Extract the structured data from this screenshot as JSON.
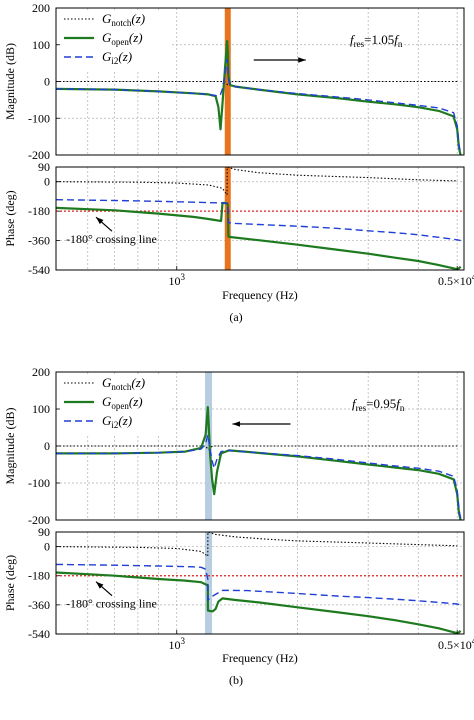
{
  "figure": {
    "colors": {
      "notch": "#000000",
      "open": "#1e7a1e",
      "i2": "#1f3fd6",
      "crossing": "#e0201c",
      "marker_a": "#e8731f",
      "marker_b": "#b8cde0",
      "grid": "#b0b0b0"
    }
  },
  "chart_data": [
    {
      "panel_label": "(a)",
      "type": "line",
      "xscale": "log",
      "xlabel": "Frequency  (Hz)",
      "xlim": [
        500,
        5200
      ],
      "xticks": [
        {
          "value": 1000,
          "base": "10",
          "exp": "3"
        },
        {
          "value": 5000,
          "pre": "0.5×10",
          "exp": "4"
        }
      ],
      "resonance_marker": {
        "x": 1340,
        "style": "orange-band"
      },
      "annotation": {
        "prefix": "f",
        "sub": "res",
        "text": "=1.05",
        "suffix": "f",
        "suffix_sub": "n",
        "arrow": "right"
      },
      "legend": [
        {
          "series": "notch",
          "base": "G",
          "sub": "notch",
          "arg": "(z)"
        },
        {
          "series": "open",
          "base": "G",
          "sub": "open",
          "arg": "(z)"
        },
        {
          "series": "i2",
          "base": "G",
          "sub": "i2",
          "arg": "(z)"
        }
      ],
      "magnitude": {
        "ylabel": "Magnitude (dB)",
        "ylim": [
          -200,
          200
        ],
        "yticks": [
          200,
          100,
          0,
          -100,
          -200
        ],
        "series": [
          {
            "key": "notch",
            "x": [
              500,
              800,
              1000,
              1200,
              1300,
              1320,
              1330,
              1340,
              1350,
              1360,
              1380,
              1500,
              2000,
              3000,
              4000,
              5000
            ],
            "y": [
              0,
              0,
              0,
              0,
              0,
              -2,
              -5,
              -10,
              -5,
              -2,
              0,
              0,
              0,
              0,
              0,
              0
            ]
          },
          {
            "key": "open",
            "x": [
              500,
              700,
              900,
              1100,
              1200,
              1250,
              1270,
              1285,
              1300,
              1320,
              1335,
              1340,
              1345,
              1360,
              1400,
              1600,
              2000,
              2500,
              3000,
              3500,
              4000,
              4500,
              4900,
              5000,
              5050,
              5100
            ],
            "y": [
              -20,
              -22,
              -27,
              -32,
              -35,
              -40,
              -70,
              -130,
              -60,
              40,
              110,
              80,
              15,
              -10,
              -14,
              -22,
              -35,
              -45,
              -55,
              -62,
              -70,
              -80,
              -95,
              -130,
              -180,
              -200
            ]
          },
          {
            "key": "i2",
            "x": [
              500,
              700,
              900,
              1100,
              1200,
              1250,
              1270,
              1285,
              1300,
              1320,
              1335,
              1340,
              1345,
              1360,
              1400,
              1600,
              2000,
              2500,
              3000,
              3500,
              4000,
              4500,
              4900,
              5000,
              5050,
              5100
            ],
            "y": [
              -20,
              -22,
              -27,
              -32,
              -35,
              -38,
              -40,
              -35,
              -20,
              20,
              60,
              40,
              5,
              -10,
              -14,
              -22,
              -33,
              -42,
              -50,
              -58,
              -65,
              -72,
              -85,
              -120,
              -170,
              -195
            ]
          }
        ]
      },
      "phase": {
        "ylabel": "Phase (deg)",
        "ylim": [
          -540,
          90
        ],
        "yticks": [
          90,
          0,
          -180,
          -360,
          -540
        ],
        "crossing_line": {
          "y": -180,
          "label": "-180° crossing line"
        },
        "series": [
          {
            "key": "notch",
            "x": [
              500,
              800,
              1000,
              1200,
              1300,
              1335,
              1336,
              1400,
              1600,
              2000,
              3000,
              4000,
              5000
            ],
            "y": [
              0,
              -3,
              -8,
              -20,
              -40,
              -80,
              90,
              75,
              55,
              40,
              25,
              12,
              5
            ]
          },
          {
            "key": "open",
            "x": [
              500,
              700,
              900,
              1100,
              1200,
              1290,
              1300,
              1320,
              1335,
              1340,
              1345,
              1360,
              1400,
              1600,
              2000,
              2500,
              3000,
              3500,
              4000,
              4500,
              5000,
              5050,
              5100
            ],
            "y": [
              -160,
              -175,
              -195,
              -215,
              -228,
              -240,
              -130,
              -130,
              -135,
              -140,
              -335,
              -338,
              -342,
              -358,
              -385,
              -415,
              -440,
              -465,
              -485,
              -510,
              -535,
              -530,
              -520
            ]
          },
          {
            "key": "i2",
            "x": [
              500,
              700,
              900,
              1100,
              1200,
              1300,
              1330,
              1340,
              1345,
              1400,
              1600,
              2000,
              2500,
              3000,
              3500,
              4000,
              4500,
              5000,
              5100
            ],
            "y": [
              -110,
              -115,
              -120,
              -125,
              -128,
              -130,
              -132,
              -130,
              -250,
              -255,
              -262,
              -272,
              -285,
              -300,
              -312,
              -325,
              -340,
              -355,
              -360
            ]
          }
        ]
      }
    },
    {
      "panel_label": "(b)",
      "type": "line",
      "xscale": "log",
      "xlabel": "Frequency  (Hz)",
      "xlim": [
        500,
        5200
      ],
      "xticks": [
        {
          "value": 1000,
          "base": "10",
          "exp": "3"
        },
        {
          "value": 5000,
          "pre": "0.5×10",
          "exp": "4"
        }
      ],
      "resonance_marker": {
        "x": 1200,
        "style": "blue-band"
      },
      "annotation": {
        "prefix": "f",
        "sub": "res",
        "text": "=0.95",
        "suffix": "f",
        "suffix_sub": "n",
        "arrow": "left"
      },
      "legend": [
        {
          "series": "notch",
          "base": "G",
          "sub": "notch",
          "arg": "(z)"
        },
        {
          "series": "open",
          "base": "G",
          "sub": "open",
          "arg": "(z)"
        },
        {
          "series": "i2",
          "base": "G",
          "sub": "i2",
          "arg": "(z)"
        }
      ],
      "magnitude": {
        "ylabel": "Magnitude (dB)",
        "ylim": [
          -200,
          200
        ],
        "yticks": [
          200,
          100,
          0,
          -100,
          -200
        ],
        "series": [
          {
            "key": "notch",
            "x": [
              500,
              800,
              1000,
              1150,
              1180,
              1190,
              1200,
              1210,
              1220,
              1240,
              1300,
              1500,
              2000,
              3000,
              4000,
              5000
            ],
            "y": [
              0,
              0,
              0,
              0,
              -2,
              -5,
              -10,
              -5,
              -2,
              0,
              0,
              0,
              0,
              0,
              0,
              0
            ]
          },
          {
            "key": "open",
            "x": [
              500,
              700,
              900,
              1050,
              1150,
              1180,
              1195,
              1200,
              1210,
              1225,
              1240,
              1260,
              1290,
              1350,
              1500,
              2000,
              2500,
              3000,
              3500,
              4000,
              4500,
              4900,
              5000,
              5050,
              5100
            ],
            "y": [
              -20,
              -20,
              -18,
              -15,
              -5,
              30,
              105,
              70,
              -20,
              -90,
              -130,
              -70,
              -20,
              -12,
              -16,
              -28,
              -40,
              -50,
              -58,
              -65,
              -75,
              -90,
              -130,
              -180,
              -200
            ]
          },
          {
            "key": "i2",
            "x": [
              500,
              700,
              900,
              1050,
              1150,
              1180,
              1195,
              1200,
              1210,
              1225,
              1240,
              1260,
              1290,
              1350,
              1500,
              2000,
              2500,
              3000,
              3500,
              4000,
              4500,
              4900,
              5000,
              5050,
              5100
            ],
            "y": [
              -20,
              -20,
              -18,
              -15,
              -8,
              5,
              30,
              20,
              -10,
              -40,
              -60,
              -35,
              -15,
              -12,
              -16,
              -26,
              -36,
              -46,
              -54,
              -60,
              -68,
              -82,
              -120,
              -170,
              -195
            ]
          }
        ]
      },
      "phase": {
        "ylabel": "Phase (deg)",
        "ylim": [
          -540,
          90
        ],
        "yticks": [
          90,
          0,
          -180,
          -360,
          -540
        ],
        "crossing_line": {
          "y": -180,
          "label": "-180° crossing line"
        },
        "series": [
          {
            "key": "notch",
            "x": [
              500,
              800,
              1000,
              1150,
              1195,
              1196,
              1250,
              1400,
              1700,
              2000,
              3000,
              4000,
              5000
            ],
            "y": [
              0,
              -5,
              -12,
              -30,
              -60,
              90,
              75,
              60,
              45,
              35,
              22,
              12,
              5
            ]
          },
          {
            "key": "open",
            "x": [
              500,
              700,
              900,
              1050,
              1150,
              1195,
              1196,
              1210,
              1230,
              1250,
              1270,
              1300,
              1400,
              1600,
              2000,
              2500,
              3000,
              3500,
              4000,
              4500,
              5000,
              5050,
              5100
            ],
            "y": [
              -160,
              -180,
              -200,
              -210,
              -220,
              -240,
              -395,
              -398,
              -400,
              -385,
              -340,
              -320,
              -330,
              -345,
              -375,
              -405,
              -430,
              -455,
              -480,
              -505,
              -535,
              -530,
              -520
            ]
          },
          {
            "key": "i2",
            "x": [
              500,
              700,
              900,
              1100,
              1150,
              1180,
              1195,
              1196,
              1230,
              1300,
              1500,
              2000,
              2500,
              3000,
              3500,
              4000,
              4500,
              5000,
              5100
            ],
            "y": [
              -110,
              -115,
              -120,
              -125,
              -128,
              -140,
              -200,
              -330,
              -305,
              -270,
              -272,
              -290,
              -305,
              -315,
              -325,
              -335,
              -345,
              -355,
              -360
            ]
          }
        ]
      }
    }
  ]
}
